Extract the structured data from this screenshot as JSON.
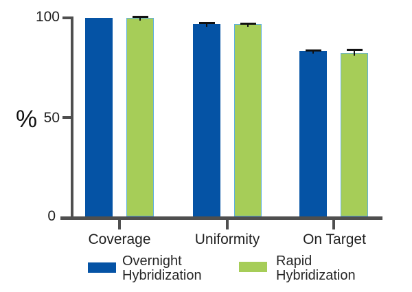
{
  "chart_data": {
    "type": "bar",
    "title": "",
    "xlabel": "",
    "ylabel": "%",
    "categories": [
      "Coverage",
      "Uniformity",
      "On Target"
    ],
    "series": [
      {
        "name": "Overnight Hybridization",
        "color": "#0553a5",
        "values": [
          99.5,
          96.7,
          83.0
        ],
        "errors": [
          0,
          1.0,
          1.0
        ]
      },
      {
        "name": "Rapid Hybridization",
        "color": "#a6cd58",
        "border_color": "#5fb0dd",
        "values": [
          99.8,
          96.4,
          82.3
        ],
        "errors": [
          0.9,
          1.0,
          1.8
        ]
      }
    ],
    "ylim": [
      0,
      100
    ],
    "yticks": [
      0,
      50,
      100
    ],
    "grid": false,
    "error_bars": true,
    "legend_position": "bottom"
  },
  "style_colors": {
    "axis": "#4f4f4f",
    "error_bar": "#111111",
    "text": "#1f1f1f",
    "background": "#ffffff"
  }
}
